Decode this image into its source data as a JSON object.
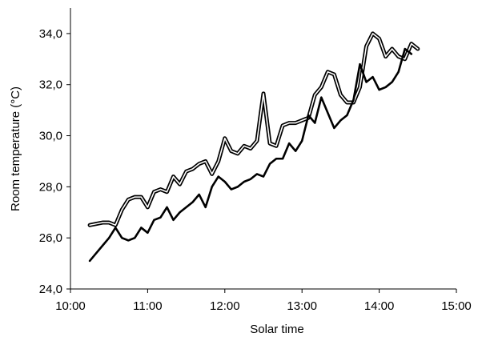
{
  "chart_data": {
    "type": "line",
    "title": "",
    "xlabel": "Solar time",
    "ylabel": "Room temperature (°C)",
    "xlim": [
      "10:00",
      "15:00"
    ],
    "ylim": [
      24.0,
      35.0
    ],
    "x_ticks": [
      "10:00",
      "11:00",
      "12:00",
      "13:00",
      "14:00",
      "15:00"
    ],
    "y_ticks": [
      "24,0",
      "26,0",
      "28,0",
      "30,0",
      "32,0",
      "34,0"
    ],
    "grid": false,
    "legend": "none",
    "series": [
      {
        "style": "double-outline",
        "color": "#000000",
        "fill": "#ffffff",
        "points": [
          [
            "10:15",
            26.5
          ],
          [
            "10:20",
            26.55
          ],
          [
            "10:25",
            26.6
          ],
          [
            "10:30",
            26.6
          ],
          [
            "10:35",
            26.5
          ],
          [
            "10:40",
            27.1
          ],
          [
            "10:45",
            27.5
          ],
          [
            "10:50",
            27.6
          ],
          [
            "10:55",
            27.6
          ],
          [
            "11:00",
            27.2
          ],
          [
            "11:05",
            27.8
          ],
          [
            "11:10",
            27.9
          ],
          [
            "11:15",
            27.8
          ],
          [
            "11:20",
            28.4
          ],
          [
            "11:25",
            28.1
          ],
          [
            "11:30",
            28.6
          ],
          [
            "11:35",
            28.7
          ],
          [
            "11:40",
            28.9
          ],
          [
            "11:45",
            29.0
          ],
          [
            "11:50",
            28.5
          ],
          [
            "11:55",
            29.0
          ],
          [
            "12:00",
            29.9
          ],
          [
            "12:05",
            29.4
          ],
          [
            "12:10",
            29.3
          ],
          [
            "12:15",
            29.6
          ],
          [
            "12:20",
            29.5
          ],
          [
            "12:25",
            29.8
          ],
          [
            "12:30",
            31.65
          ],
          [
            "12:35",
            29.7
          ],
          [
            "12:40",
            29.6
          ],
          [
            "12:45",
            30.4
          ],
          [
            "12:50",
            30.5
          ],
          [
            "12:55",
            30.5
          ],
          [
            "13:00",
            30.6
          ],
          [
            "13:05",
            30.7
          ],
          [
            "13:10",
            31.6
          ],
          [
            "13:15",
            31.9
          ],
          [
            "13:20",
            32.5
          ],
          [
            "13:25",
            32.4
          ],
          [
            "13:30",
            31.6
          ],
          [
            "13:35",
            31.3
          ],
          [
            "13:40",
            31.3
          ],
          [
            "13:45",
            31.9
          ],
          [
            "13:50",
            33.5
          ],
          [
            "13:55",
            34.0
          ],
          [
            "14:00",
            33.8
          ],
          [
            "14:05",
            33.1
          ],
          [
            "14:10",
            33.4
          ],
          [
            "14:15",
            33.1
          ],
          [
            "14:20",
            33.0
          ],
          [
            "14:25",
            33.6
          ],
          [
            "14:30",
            33.4
          ]
        ]
      },
      {
        "style": "solid",
        "color": "#000000",
        "points": [
          [
            "10:15",
            25.1
          ],
          [
            "10:20",
            25.4
          ],
          [
            "10:25",
            25.7
          ],
          [
            "10:30",
            26.0
          ],
          [
            "10:35",
            26.4
          ],
          [
            "10:40",
            26.0
          ],
          [
            "10:45",
            25.9
          ],
          [
            "10:50",
            26.0
          ],
          [
            "10:55",
            26.4
          ],
          [
            "11:00",
            26.2
          ],
          [
            "11:05",
            26.7
          ],
          [
            "11:10",
            26.8
          ],
          [
            "11:15",
            27.2
          ],
          [
            "11:20",
            26.7
          ],
          [
            "11:25",
            27.0
          ],
          [
            "11:30",
            27.2
          ],
          [
            "11:35",
            27.4
          ],
          [
            "11:40",
            27.7
          ],
          [
            "11:45",
            27.2
          ],
          [
            "11:50",
            28.0
          ],
          [
            "11:55",
            28.4
          ],
          [
            "12:00",
            28.2
          ],
          [
            "12:05",
            27.9
          ],
          [
            "12:10",
            28.0
          ],
          [
            "12:15",
            28.2
          ],
          [
            "12:20",
            28.3
          ],
          [
            "12:25",
            28.5
          ],
          [
            "12:30",
            28.4
          ],
          [
            "12:35",
            28.9
          ],
          [
            "12:40",
            29.1
          ],
          [
            "12:45",
            29.1
          ],
          [
            "12:50",
            29.7
          ],
          [
            "12:55",
            29.4
          ],
          [
            "13:00",
            29.8
          ],
          [
            "13:05",
            30.8
          ],
          [
            "13:10",
            30.5
          ],
          [
            "13:15",
            31.5
          ],
          [
            "13:20",
            30.9
          ],
          [
            "13:25",
            30.3
          ],
          [
            "13:30",
            30.6
          ],
          [
            "13:35",
            30.8
          ],
          [
            "13:40",
            31.4
          ],
          [
            "13:45",
            32.8
          ],
          [
            "13:50",
            32.1
          ],
          [
            "13:55",
            32.3
          ],
          [
            "14:00",
            31.8
          ],
          [
            "14:05",
            31.9
          ],
          [
            "14:10",
            32.1
          ],
          [
            "14:15",
            32.5
          ],
          [
            "14:20",
            33.4
          ],
          [
            "14:25",
            33.2
          ]
        ]
      }
    ]
  }
}
